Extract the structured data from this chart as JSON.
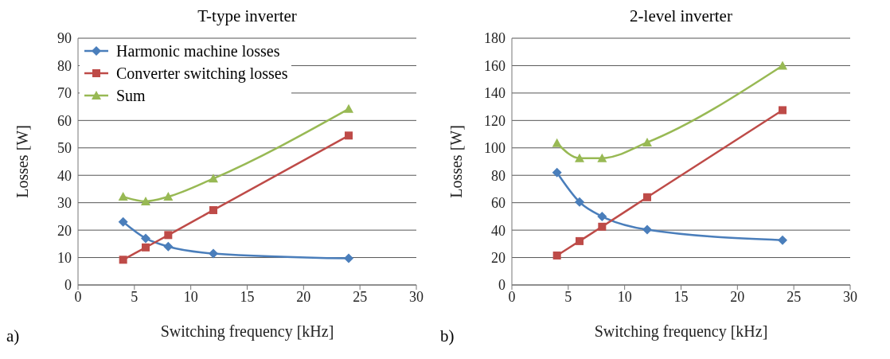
{
  "chart_data": [
    {
      "type": "line",
      "title": "T-type inverter",
      "xlabel": "Switching frequency [kHz]",
      "ylabel": "Losses [W]",
      "x": [
        4,
        6,
        8,
        12,
        24
      ],
      "xlim": [
        0,
        30
      ],
      "xticks": [
        0,
        5,
        10,
        15,
        20,
        25,
        30
      ],
      "ylim": [
        0,
        90
      ],
      "yticks": [
        0,
        10,
        20,
        30,
        40,
        50,
        60,
        70,
        80,
        90
      ],
      "grid": "y",
      "legend": "top left",
      "annotations": [
        "a)"
      ],
      "series": [
        {
          "name": "Harmonic machine losses",
          "color": "#4a7ebb",
          "marker": "diamond",
          "values": [
            23,
            17,
            14,
            11.5,
            9.7
          ]
        },
        {
          "name": "Converter switching losses",
          "color": "#be4b48",
          "marker": "square",
          "values": [
            9.2,
            13.7,
            18.2,
            27.3,
            54.5
          ]
        },
        {
          "name": "Sum",
          "color": "#98b954",
          "marker": "triangle",
          "values": [
            32.2,
            30.5,
            32.2,
            38.8,
            64.2
          ]
        }
      ]
    },
    {
      "type": "line",
      "title": "2-level inverter",
      "xlabel": "Switching frequency [kHz]",
      "ylabel": "Losses [W]",
      "x": [
        4,
        6,
        8,
        12,
        24
      ],
      "xlim": [
        0,
        30
      ],
      "xticks": [
        0,
        5,
        10,
        15,
        20,
        25,
        30
      ],
      "ylim": [
        0,
        180
      ],
      "yticks": [
        0,
        20,
        40,
        60,
        80,
        100,
        120,
        140,
        160,
        180
      ],
      "grid": "y",
      "annotations": [
        "b)"
      ],
      "series": [
        {
          "color": "#4a7ebb",
          "marker": "diamond",
          "values": [
            82,
            60.5,
            50,
            40.3,
            32.7
          ]
        },
        {
          "color": "#be4b48",
          "marker": "square",
          "values": [
            21.5,
            32,
            42.5,
            64,
            127.5
          ]
        },
        {
          "color": "#98b954",
          "marker": "triangle",
          "values": [
            103.5,
            92.5,
            92.5,
            104,
            160
          ]
        }
      ]
    }
  ]
}
